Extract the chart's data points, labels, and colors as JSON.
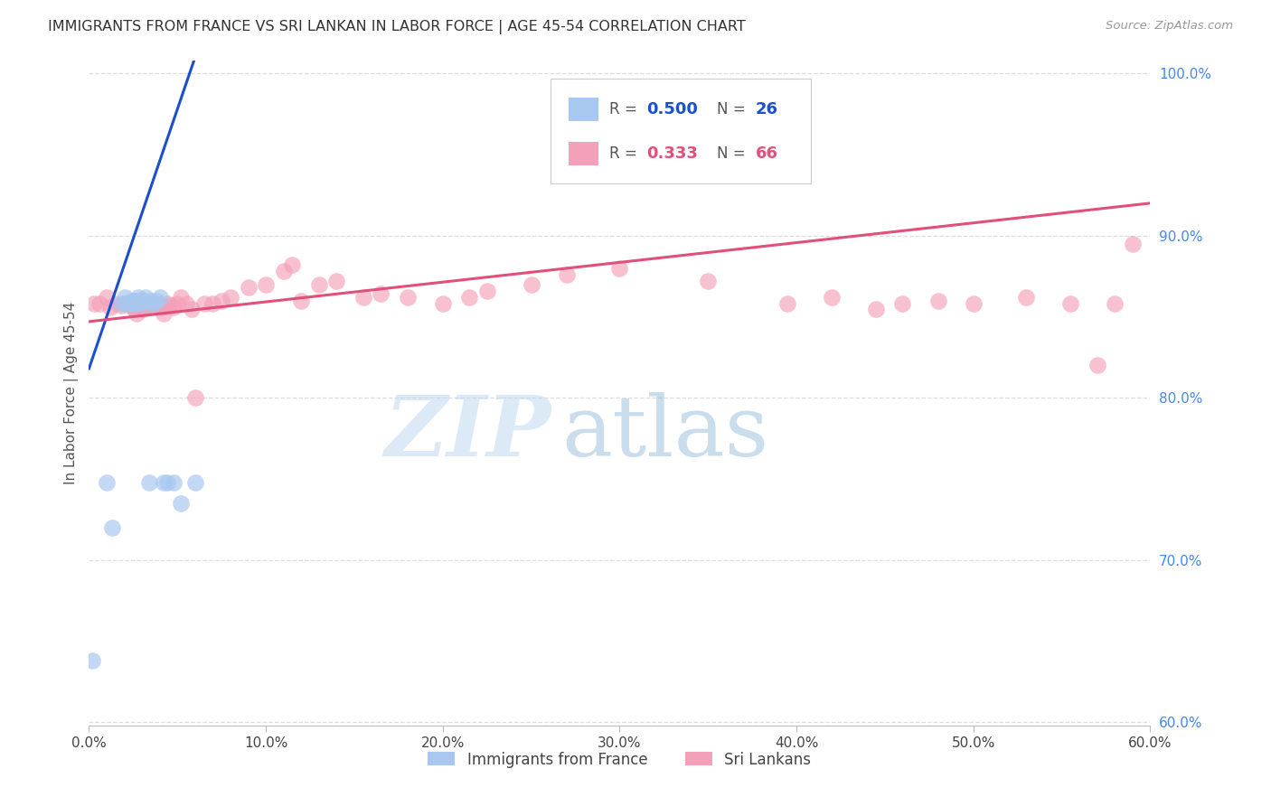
{
  "title": "IMMIGRANTS FROM FRANCE VS SRI LANKAN IN LABOR FORCE | AGE 45-54 CORRELATION CHART",
  "source": "Source: ZipAtlas.com",
  "ylabel": "In Labor Force | Age 45-54",
  "xlim": [
    0.0,
    0.6
  ],
  "ylim": [
    0.598,
    1.008
  ],
  "xtick_labels": [
    "0.0%",
    "10.0%",
    "20.0%",
    "30.0%",
    "40.0%",
    "50.0%",
    "60.0%"
  ],
  "xtick_vals": [
    0.0,
    0.1,
    0.2,
    0.3,
    0.4,
    0.5,
    0.6
  ],
  "ytick_labels": [
    "60.0%",
    "70.0%",
    "80.0%",
    "90.0%",
    "100.0%"
  ],
  "ytick_vals": [
    0.6,
    0.7,
    0.8,
    0.9,
    1.0
  ],
  "france_R": 0.5,
  "france_N": 26,
  "srilanka_R": 0.333,
  "srilanka_N": 66,
  "france_color": "#a8c8f0",
  "france_line_color": "#1a50cc",
  "srilanka_color": "#f4a0b8",
  "srilanka_line_color": "#e0507a",
  "watermark_zip": "ZIP",
  "watermark_atlas": "atlas",
  "france_x": [
    0.002,
    0.01,
    0.013,
    0.018,
    0.02,
    0.022,
    0.024,
    0.025,
    0.026,
    0.026,
    0.027,
    0.028,
    0.029,
    0.03,
    0.031,
    0.032,
    0.034,
    0.035,
    0.036,
    0.038,
    0.04,
    0.042,
    0.044,
    0.048,
    0.052,
    0.06
  ],
  "france_y": [
    0.638,
    0.748,
    0.72,
    0.858,
    0.862,
    0.858,
    0.86,
    0.858,
    0.858,
    0.86,
    0.86,
    0.862,
    0.858,
    0.86,
    0.86,
    0.862,
    0.748,
    0.86,
    0.858,
    0.86,
    0.862,
    0.748,
    0.748,
    0.748,
    0.735,
    0.748
  ],
  "france_line_x0": 0.0,
  "france_line_y0": 0.818,
  "france_line_x1": 0.06,
  "france_line_y1": 1.01,
  "srilanka_x": [
    0.003,
    0.006,
    0.01,
    0.012,
    0.015,
    0.018,
    0.02,
    0.022,
    0.024,
    0.025,
    0.025,
    0.026,
    0.026,
    0.027,
    0.028,
    0.03,
    0.031,
    0.032,
    0.033,
    0.034,
    0.035,
    0.036,
    0.038,
    0.04,
    0.041,
    0.042,
    0.044,
    0.046,
    0.048,
    0.05,
    0.052,
    0.055,
    0.058,
    0.06,
    0.065,
    0.07,
    0.075,
    0.08,
    0.09,
    0.1,
    0.11,
    0.115,
    0.12,
    0.13,
    0.14,
    0.155,
    0.165,
    0.18,
    0.2,
    0.215,
    0.225,
    0.25,
    0.27,
    0.3,
    0.35,
    0.395,
    0.42,
    0.445,
    0.46,
    0.48,
    0.5,
    0.53,
    0.555,
    0.57,
    0.58,
    0.59
  ],
  "srilanka_y": [
    0.858,
    0.858,
    0.862,
    0.856,
    0.858,
    0.857,
    0.858,
    0.858,
    0.858,
    0.856,
    0.86,
    0.858,
    0.855,
    0.852,
    0.858,
    0.858,
    0.855,
    0.856,
    0.858,
    0.858,
    0.856,
    0.858,
    0.858,
    0.858,
    0.856,
    0.852,
    0.858,
    0.857,
    0.856,
    0.858,
    0.862,
    0.858,
    0.855,
    0.8,
    0.858,
    0.858,
    0.86,
    0.862,
    0.868,
    0.87,
    0.878,
    0.882,
    0.86,
    0.87,
    0.872,
    0.862,
    0.864,
    0.862,
    0.858,
    0.862,
    0.866,
    0.87,
    0.876,
    0.88,
    0.872,
    0.858,
    0.862,
    0.855,
    0.858,
    0.86,
    0.858,
    0.862,
    0.858,
    0.82,
    0.858,
    0.895
  ],
  "srilanka_line_x0": 0.0,
  "srilanka_line_y0": 0.847,
  "srilanka_line_x1": 0.6,
  "srilanka_line_y1": 0.92
}
